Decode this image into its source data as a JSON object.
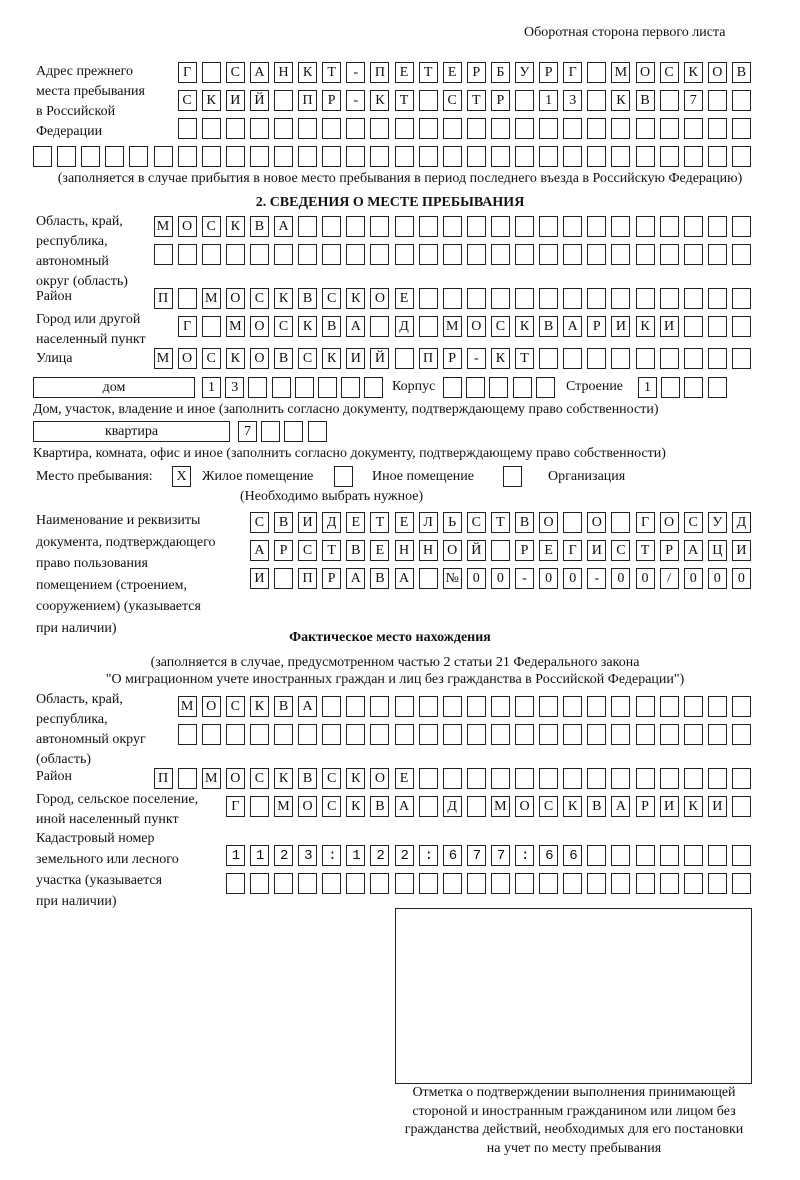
{
  "header": "Оборотная сторона первого листа",
  "prev_address": {
    "label": [
      "Адрес прежнего",
      "места пребывания",
      "в Российской",
      "Федерации"
    ],
    "rows": [
      "Г САНКТ-ПЕТЕРБУРГ МОСКОВ",
      "СКИЙ ПР-КТ СТР 13 КВ 7",
      "",
      ""
    ],
    "note": "(заполняется в случае прибытия в новое место пребывания в период последнего въезда в Российскую Федерацию)"
  },
  "section2": {
    "title": "2. СВЕДЕНИЯ О МЕСТЕ ПРЕБЫВАНИЯ",
    "region_label": [
      "Область, край,",
      "республика,",
      "автономный",
      "округ (область)"
    ],
    "region_rows": [
      "МОСКВА",
      ""
    ],
    "district_label": "Район",
    "district": "П МОСКВСКОЕ",
    "city_label": [
      "Город или другой",
      "населенный пункт"
    ],
    "city": "Г МОСКВА Д МОСКВАРИКИ",
    "street_label": "Улица",
    "street": "МОСКОВСКИЙ ПР-КТ",
    "house_type": "дом",
    "house": "13",
    "korpus_label": "Корпус",
    "korpus": "",
    "building_label": "Строение",
    "building": "1",
    "house_note": "Дом, участок, владение и иное (заполнить согласно документу, подтверждающему право собственности)",
    "flat_type": "квартира",
    "flat": "7",
    "flat_note": "Квартира, комната, офис и иное (заполнить согласно документу, подтверждающему право собственности)",
    "stay_label": "Место пребывания:",
    "stay_options": [
      {
        "label": "Жилое помещение",
        "mark": "Х"
      },
      {
        "label": "Иное помещение",
        "mark": ""
      },
      {
        "label": "Организация",
        "mark": ""
      }
    ],
    "stay_note": "(Необходимо выбрать нужное)",
    "doc_label": [
      "Наименование и реквизиты",
      "документа, подтверждающего",
      "право пользования",
      "помещением (строением,",
      "сооружением) (указывается",
      "при наличии)"
    ],
    "doc_rows": [
      "СВИДЕТЕЛЬСТВО О ГОСУД",
      "АРСТВЕННОЙ РЕГИСТРАЦИ",
      "И ПРАВА №00-00-00/000"
    ]
  },
  "actual": {
    "title": "Фактическое место нахождения",
    "note": [
      "(заполняется в случае, предусмотренном частью 2 статьи 21 Федерального закона",
      "\"О миграционном учете иностранных граждан и лиц без гражданства в Российской Федерации\")"
    ],
    "region_label": [
      "Область, край,",
      "республика,",
      "автономный округ",
      "(область)"
    ],
    "region_rows": [
      "МОСКВА",
      ""
    ],
    "district_label": "Район",
    "district": "П МОСКВСКОЕ",
    "city_label": [
      "Город, сельское поселение,",
      "иной населенный пункт"
    ],
    "city": "Г МОСКВА Д МОСКВАРИКИ",
    "cadastre_label": [
      "Кадастровый номер",
      "земельного или лесного",
      "участка (указывается",
      "при наличии)"
    ],
    "cadastre_rows": [
      "1123:122:677:66",
      ""
    ]
  },
  "stamp_caption": [
    "Отметка о подтверждении выполнения принимающей",
    "стороной и иностранным гражданином или лицом без",
    "гражданства действий, необходимых для его постановки",
    "на учет по месту пребывания"
  ]
}
